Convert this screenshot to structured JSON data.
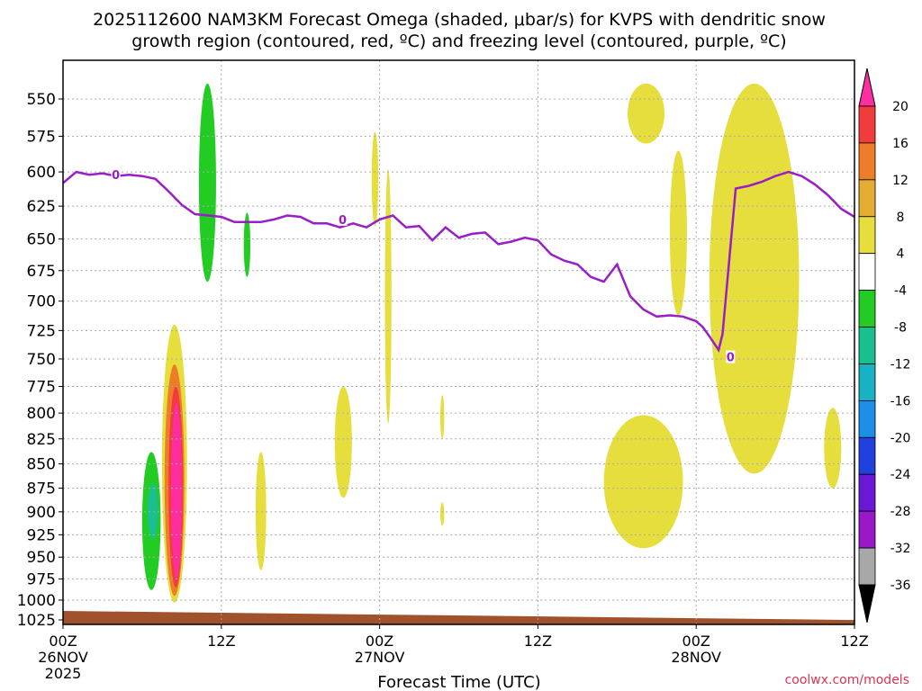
{
  "chart_data": {
    "type": "time-height cross section",
    "title_line1": "2025112600 NAM3KM Forecast Omega (shaded, μbar/s) for KVPS with dendritic snow",
    "title_line2": "growth region (contoured, red, ºC) and freezing level (contoured, purple, ºC)",
    "xlabel": "Forecast Time (UTC)",
    "xlim_hours": [
      0,
      60
    ],
    "x_ticks": [
      {
        "hour": 0,
        "label": "00Z",
        "sub": "26NOV",
        "sub2": "2025"
      },
      {
        "hour": 12,
        "label": "12Z",
        "sub": "",
        "sub2": ""
      },
      {
        "hour": 24,
        "label": "00Z",
        "sub": "27NOV",
        "sub2": ""
      },
      {
        "hour": 36,
        "label": "12Z",
        "sub": "",
        "sub2": ""
      },
      {
        "hour": 48,
        "label": "00Z",
        "sub": "28NOV",
        "sub2": ""
      },
      {
        "hour": 60,
        "label": "12Z",
        "sub": "",
        "sub2": ""
      }
    ],
    "y_ticks_hPa": [
      550,
      575,
      600,
      625,
      650,
      675,
      700,
      725,
      750,
      775,
      800,
      825,
      850,
      875,
      900,
      925,
      950,
      975,
      1000,
      1025
    ],
    "colorbar": {
      "labels": [
        "20",
        "16",
        "12",
        "8",
        "4",
        "-4",
        "-8",
        "-12",
        "-16",
        "-20",
        "-24",
        "-28",
        "-32",
        "-36"
      ],
      "colors": [
        "#ff2ea0",
        "#f03c3c",
        "#ee7d2a",
        "#e3ad33",
        "#e5de3c",
        "#ffffff",
        "#22cc22",
        "#1abf8f",
        "#18b2c4",
        "#1c8fe8",
        "#2040e0",
        "#6a18d6",
        "#9a18c8",
        "#a8a8a8",
        "#000000"
      ]
    },
    "freezing_level": {
      "label": "0",
      "color": "#9a1ec8",
      "hours": [
        0,
        1,
        2,
        3,
        4,
        5,
        6,
        7,
        8,
        9,
        10,
        11,
        12,
        13,
        14,
        15,
        16,
        17,
        18,
        19,
        20,
        21,
        22,
        23,
        24,
        25,
        26,
        27,
        28,
        29,
        30,
        31,
        32,
        33,
        34,
        35,
        36,
        37,
        38,
        39,
        40,
        41,
        42,
        43,
        44,
        45,
        46,
        47,
        48,
        48.5,
        49,
        49.7,
        50,
        51,
        52,
        53,
        54,
        55,
        56,
        57,
        58,
        59,
        60
      ],
      "hPa": [
        608,
        600,
        602,
        601,
        603,
        602,
        603,
        605,
        614,
        624,
        631,
        632,
        633,
        637,
        637,
        637,
        635,
        632,
        633,
        638,
        638,
        641,
        638,
        641,
        635,
        632,
        641,
        640,
        651,
        641,
        649,
        646,
        645,
        654,
        652,
        649,
        651,
        662,
        667,
        670,
        680,
        684,
        670,
        696,
        707,
        713,
        712,
        713,
        717,
        722,
        730,
        742,
        728,
        612,
        610,
        607,
        603,
        600,
        603,
        609,
        617,
        627,
        633
      ]
    },
    "omega_regions": [
      {
        "name": "green-updraft-left",
        "value": -6,
        "t": [
          6.0,
          7.4
        ],
        "p": [
          838,
          988
        ]
      },
      {
        "name": "cyan-core-left",
        "value": -10,
        "t": [
          6.4,
          7.2
        ],
        "p": [
          870,
          930
        ]
      },
      {
        "name": "green-updraft-tall",
        "value": -6,
        "t": [
          10.3,
          11.6
        ],
        "p": [
          540,
          684
        ]
      },
      {
        "name": "green-small",
        "value": -6,
        "t": [
          13.7,
          14.2
        ],
        "p": [
          630,
          680
        ]
      },
      {
        "name": "yellow-subsidence-a",
        "value": 6,
        "t": [
          7.5,
          9.4
        ],
        "p": [
          720,
          1003
        ]
      },
      {
        "name": "orange-subsidence-a",
        "value": 10,
        "t": [
          7.7,
          9.2
        ],
        "p": [
          755,
          995
        ]
      },
      {
        "name": "red-subsidence-a",
        "value": 14,
        "t": [
          8.0,
          9.1
        ],
        "p": [
          775,
          985
        ]
      },
      {
        "name": "pink-core-a",
        "value": 20,
        "t": [
          8.2,
          9.0
        ],
        "p": [
          790,
          975
        ]
      },
      {
        "name": "yellow-b",
        "value": 6,
        "t": [
          14.6,
          15.4
        ],
        "p": [
          838,
          965
        ]
      },
      {
        "name": "yellow-c",
        "value": 6,
        "t": [
          20.6,
          21.9
        ],
        "p": [
          775,
          885
        ]
      },
      {
        "name": "yellow-d",
        "value": 6,
        "t": [
          23.4,
          23.9
        ],
        "p": [
          572,
          640
        ]
      },
      {
        "name": "yellow-e",
        "value": 6,
        "t": [
          24.4,
          24.9
        ],
        "p": [
          598,
          810
        ]
      },
      {
        "name": "yellow-f",
        "value": 6,
        "t": [
          28.6,
          28.9
        ],
        "p": [
          783,
          825
        ]
      },
      {
        "name": "yellow-g",
        "value": 6,
        "t": [
          28.6,
          28.9
        ],
        "p": [
          890,
          915
        ]
      },
      {
        "name": "yellow-h",
        "value": 6,
        "t": [
          41.0,
          47.0
        ],
        "p": [
          802,
          940
        ]
      },
      {
        "name": "yellow-i",
        "value": 6,
        "t": [
          42.8,
          45.6
        ],
        "p": [
          540,
          580
        ]
      },
      {
        "name": "yellow-j",
        "value": 6,
        "t": [
          46.0,
          47.3
        ],
        "p": [
          585,
          712
        ]
      },
      {
        "name": "yellow-k",
        "value": 6,
        "t": [
          49.0,
          55.8
        ],
        "p": [
          540,
          860
        ]
      },
      {
        "name": "yellow-l",
        "value": 6,
        "t": [
          57.7,
          59.0
        ],
        "p": [
          795,
          875
        ]
      }
    ],
    "terrain": {
      "color": "#a0522d",
      "hPa_start": 1013,
      "hPa_end": 1024
    }
  },
  "credit": "coolwx.com/models"
}
